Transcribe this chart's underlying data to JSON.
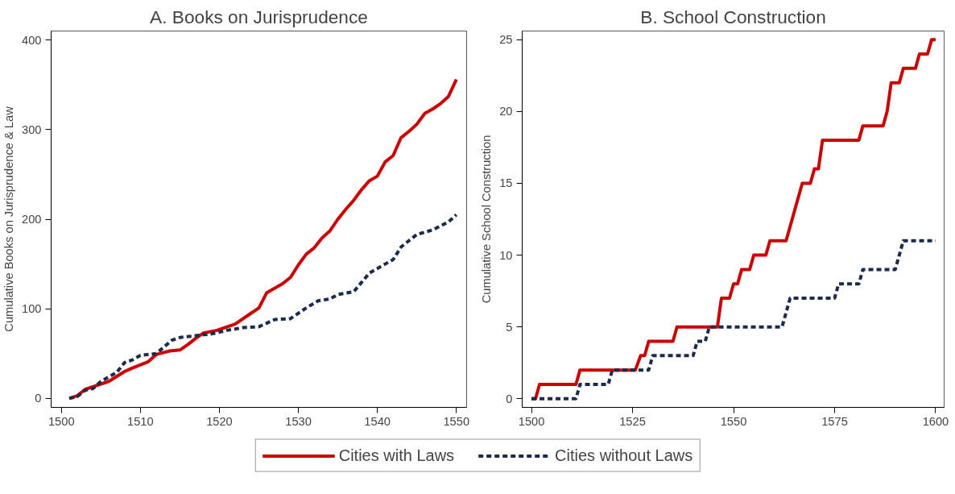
{
  "chart_data": [
    {
      "type": "line",
      "title": "A. Books on Jurisprudence",
      "ylabel": "Cumulative Books on Jurisprudence & Law",
      "xlim": [
        1498.7,
        1551.3
      ],
      "ylim": [
        -10,
        410
      ],
      "xticks": [
        1500,
        1510,
        1520,
        1530,
        1540,
        1550
      ],
      "yticks": [
        0,
        100,
        200,
        300,
        400
      ],
      "grid": false,
      "legend": "bottom",
      "series": [
        {
          "name": "Cities with Laws",
          "color": "#cc0000",
          "line_style": "solid",
          "x": [
            1501,
            1502,
            1503,
            1504,
            1506,
            1508,
            1509,
            1511,
            1512,
            1513.7,
            1515,
            1516,
            1517,
            1518,
            1519.7,
            1522,
            1524,
            1525,
            1526,
            1528,
            1529,
            1530,
            1531,
            1532,
            1533,
            1534,
            1535,
            1536,
            1537,
            1538,
            1539,
            1540,
            1541,
            1542,
            1543,
            1544,
            1545,
            1546,
            1547,
            1548,
            1549,
            1550
          ],
          "values": [
            0,
            3,
            10,
            13,
            19,
            30,
            34,
            41,
            49,
            53,
            54,
            60,
            67,
            73,
            76,
            83,
            95,
            101,
            118,
            128,
            135,
            149,
            161,
            168,
            179,
            187,
            200,
            211,
            221,
            233,
            243,
            248,
            264,
            271,
            291,
            298,
            306,
            318,
            323,
            329,
            337,
            356
          ]
        },
        {
          "name": "Cities without Laws",
          "color": "#1a2b4c",
          "line_style": "dashed",
          "x": [
            1501,
            1502,
            1503,
            1504,
            1505,
            1507,
            1508,
            1509,
            1510,
            1512,
            1514,
            1515,
            1517,
            1519,
            1521,
            1523,
            1525,
            1527,
            1529,
            1531,
            1532.5,
            1534,
            1535,
            1537,
            1539,
            1540,
            1542,
            1543,
            1545,
            1547,
            1549,
            1550
          ],
          "values": [
            0,
            2,
            9,
            11,
            19,
            29,
            40,
            43,
            48,
            50,
            65,
            68,
            70,
            72,
            76,
            79,
            80,
            88,
            89,
            101,
            109,
            111,
            116,
            119,
            140,
            145,
            155,
            169,
            183,
            188,
            197,
            205
          ]
        }
      ]
    },
    {
      "type": "line",
      "title": "B. School Construction",
      "ylabel": "Cumulative School Construction",
      "xlim": [
        1497.7,
        1602.1
      ],
      "ylim": [
        -0.6,
        25.6
      ],
      "xticks": [
        1500,
        1525,
        1550,
        1575,
        1600
      ],
      "yticks": [
        0,
        5,
        10,
        15,
        20,
        25
      ],
      "grid": false,
      "series": [
        {
          "color": "#cc0000",
          "line_style": "solid",
          "x": [
            1500,
            1501,
            1502,
            1511,
            1512,
            1525.7,
            1527,
            1528,
            1529,
            1535,
            1536,
            1546,
            1547,
            1549,
            1550,
            1551,
            1552,
            1554,
            1555,
            1558,
            1559,
            1563,
            1567,
            1569,
            1570,
            1571,
            1572,
            1581,
            1582,
            1587,
            1588,
            1589,
            1591,
            1592,
            1595,
            1596,
            1598,
            1599,
            1600
          ],
          "values": [
            0,
            0,
            1,
            1,
            2,
            2,
            3,
            3,
            4,
            4,
            5,
            5,
            7,
            7,
            8,
            8,
            9,
            9,
            10,
            10,
            11,
            11,
            15,
            15,
            16,
            16,
            18,
            18,
            19,
            19,
            20,
            22,
            22,
            23,
            23,
            24,
            24,
            25,
            25
          ]
        },
        {
          "color": "#1a2b4c",
          "line_style": "dashed",
          "x": [
            1500,
            1511,
            1512,
            1519,
            1520,
            1529,
            1530,
            1540,
            1541,
            1543,
            1544,
            1562,
            1564,
            1575,
            1576,
            1581,
            1582,
            1590,
            1592,
            1600
          ],
          "values": [
            0,
            0,
            1,
            1,
            2,
            2,
            3,
            3,
            4,
            4,
            5,
            5,
            7,
            7,
            8,
            8,
            9,
            9,
            11,
            11
          ]
        }
      ]
    }
  ]
}
